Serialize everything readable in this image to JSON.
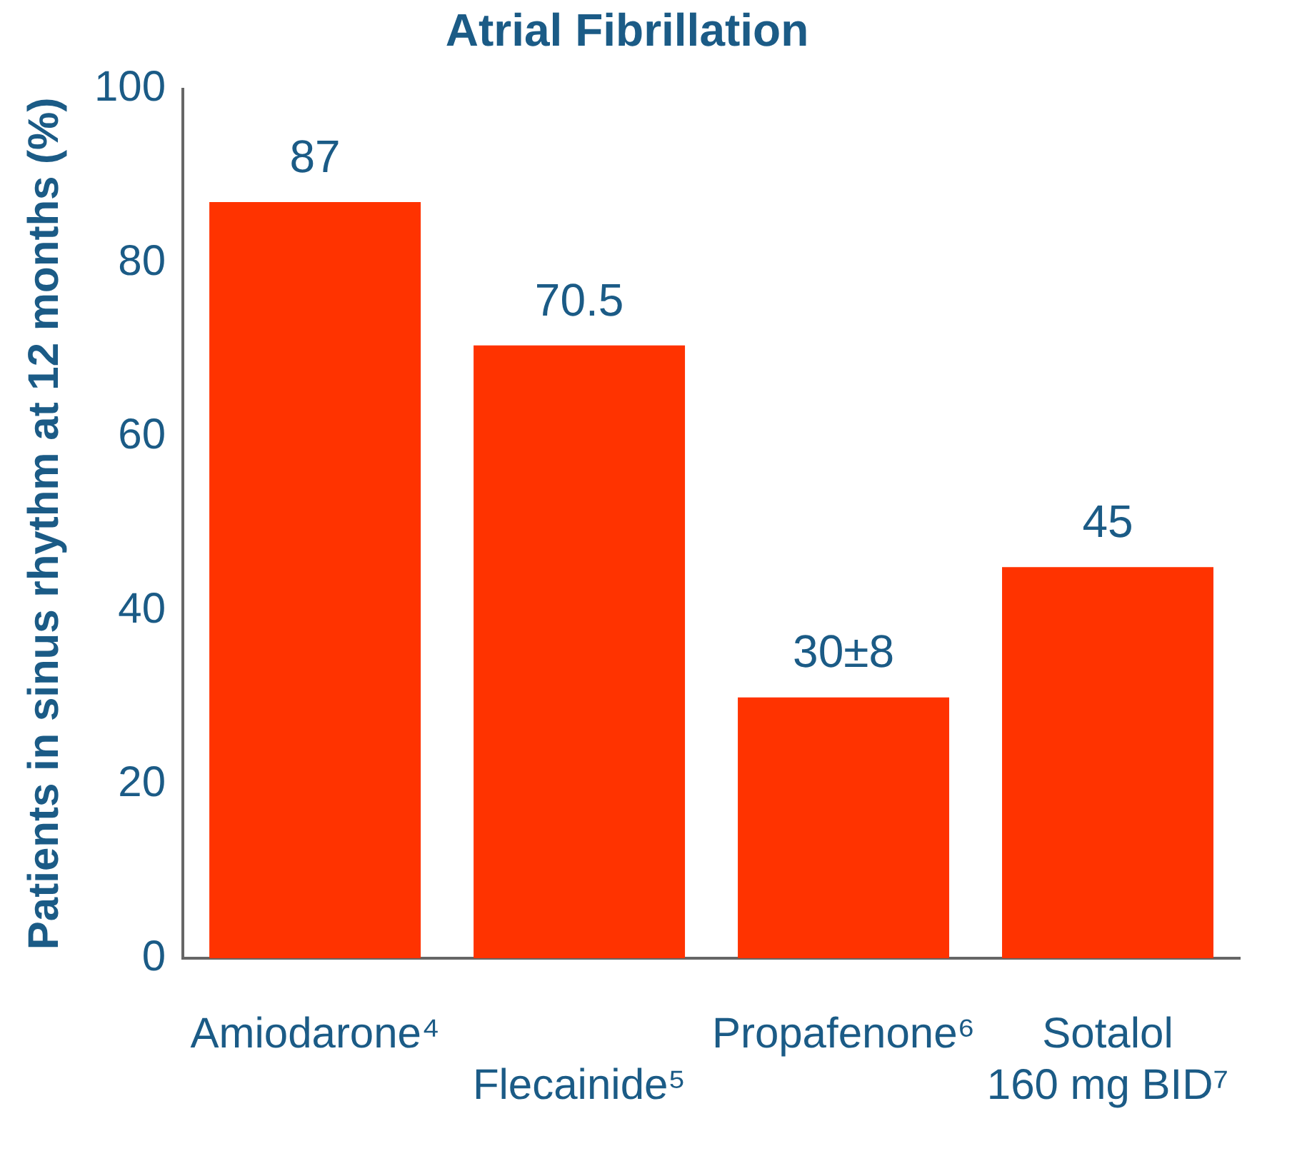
{
  "chart_data": {
    "type": "bar",
    "title": "Atrial Fibrillation",
    "ylabel": "Patients in sinus rhythm at 12 months (%)",
    "categories": [
      "Amiodarone⁴",
      "Flecainide⁵",
      "Propafenone⁶",
      "Sotalol\n160 mg BID⁷"
    ],
    "values": [
      87,
      70.5,
      30,
      45
    ],
    "color": "#ff3300",
    "value_labels": [
      "87",
      "70.5",
      "30±8",
      "45"
    ],
    "ylim": [
      0,
      100
    ],
    "yticks": [
      0,
      20,
      40,
      60,
      80,
      100
    ],
    "grid": false,
    "legend": false
  }
}
